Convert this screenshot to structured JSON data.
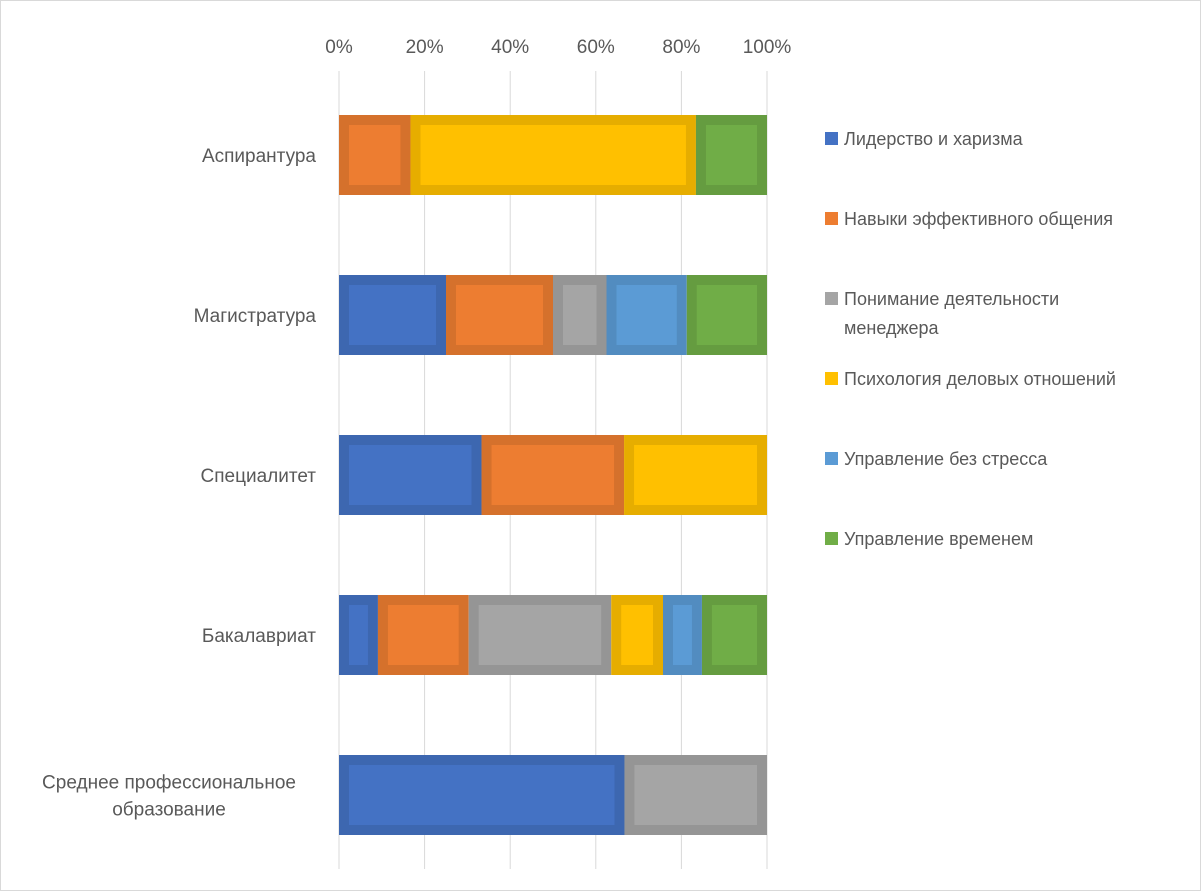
{
  "chart_data": {
    "type": "bar",
    "orientation": "horizontal",
    "stacked": "percent",
    "categories": [
      "Аспирантура",
      "Магистратура",
      "Специалитет",
      "Бакалавриат",
      [
        "Среднее профессиональное",
        "образование"
      ]
    ],
    "series": [
      {
        "name": "Лидерство и харизма",
        "color": "#4472c4",
        "values": [
          0,
          25,
          33.3,
          9.1,
          66.7
        ]
      },
      {
        "name": "Навыки эффективного общения",
        "color": "#ed7d31",
        "values": [
          16.7,
          25,
          33.3,
          21.2,
          0
        ]
      },
      {
        "name": [
          "Понимание деятельности",
          "менеджера"
        ],
        "color": "#a5a5a5",
        "values": [
          0,
          12.5,
          0,
          33.3,
          33.3
        ]
      },
      {
        "name": "Психология деловых отношений",
        "color": "#ffc000",
        "values": [
          66.7,
          0,
          33.4,
          12.1,
          0
        ]
      },
      {
        "name": "Управление без стресса",
        "color": "#5b9bd5",
        "values": [
          0,
          18.75,
          0,
          9.1,
          0
        ]
      },
      {
        "name": "Управление временем",
        "color": "#70ad47",
        "values": [
          16.6,
          18.75,
          0,
          15.2,
          0
        ]
      }
    ],
    "x_ticks": [
      "0%",
      "20%",
      "40%",
      "60%",
      "80%",
      "100%"
    ],
    "xlim": [
      0,
      100
    ],
    "title": "",
    "xlabel": "",
    "ylabel": "",
    "grid": "vertical",
    "x_axis_position": "top",
    "legend_position": "right"
  }
}
